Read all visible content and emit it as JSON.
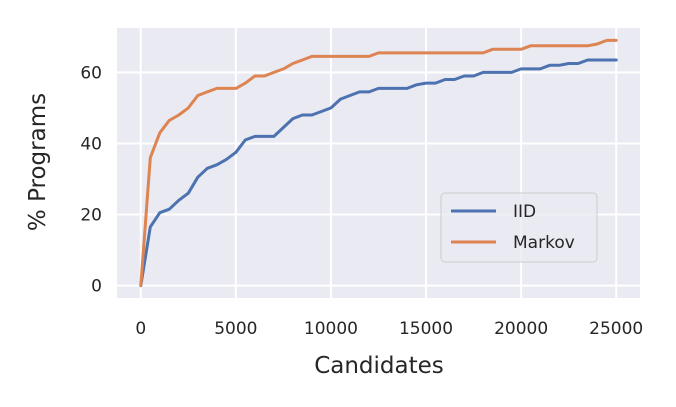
{
  "chart_data": {
    "type": "line",
    "title": "",
    "xlabel": "Candidates",
    "ylabel": "% Programs",
    "xlim": [
      -1250,
      26250
    ],
    "ylim": [
      -3.5,
      72.5
    ],
    "xticks": [
      0,
      5000,
      10000,
      15000,
      20000,
      25000
    ],
    "xtick_labels": [
      "0",
      "5000",
      "10000",
      "15000",
      "20000",
      "25000"
    ],
    "yticks": [
      0,
      20,
      40,
      60
    ],
    "ytick_labels": [
      "0",
      "20",
      "40",
      "60"
    ],
    "grid": true,
    "legend_position": "lower-right",
    "series": [
      {
        "name": "IID",
        "color": "#4c72b0",
        "x": [
          0,
          500,
          1000,
          1500,
          2000,
          2500,
          3000,
          3500,
          4000,
          4500,
          5000,
          5500,
          6000,
          6500,
          7000,
          7500,
          8000,
          8500,
          9000,
          9500,
          10000,
          10500,
          11000,
          11500,
          12000,
          12500,
          13000,
          13500,
          14000,
          14500,
          15000,
          15500,
          16000,
          16500,
          17000,
          17500,
          18000,
          18500,
          19000,
          19500,
          20000,
          20500,
          21000,
          21500,
          22000,
          22500,
          23000,
          23500,
          24000,
          24500,
          25000
        ],
        "y": [
          0,
          16.5,
          20.5,
          21.5,
          24,
          26,
          30.5,
          33,
          34,
          35.5,
          37.5,
          41,
          42,
          42,
          42,
          44.5,
          47,
          48,
          48,
          49,
          50,
          52.5,
          53.5,
          54.5,
          54.5,
          55.5,
          55.5,
          55.5,
          55.5,
          56.5,
          57,
          57,
          58,
          58,
          59,
          59,
          60,
          60,
          60,
          60,
          61,
          61,
          61,
          62,
          62,
          62.5,
          62.5,
          63.5,
          63.5,
          63.5,
          63.5
        ]
      },
      {
        "name": "Markov",
        "color": "#dd8452",
        "x": [
          0,
          500,
          1000,
          1500,
          2000,
          2500,
          3000,
          3500,
          4000,
          4500,
          5000,
          5500,
          6000,
          6500,
          7000,
          7500,
          8000,
          8500,
          9000,
          9500,
          10000,
          10500,
          11000,
          11500,
          12000,
          12500,
          13000,
          13500,
          14000,
          14500,
          15000,
          15500,
          16000,
          16500,
          17000,
          17500,
          18000,
          18500,
          19000,
          19500,
          20000,
          20500,
          21000,
          21500,
          22000,
          22500,
          23000,
          23500,
          24000,
          24500,
          25000
        ],
        "y": [
          0,
          36,
          43,
          46.5,
          48,
          50,
          53.5,
          54.5,
          55.5,
          55.5,
          55.5,
          57,
          59,
          59,
          60,
          61,
          62.5,
          63.5,
          64.5,
          64.5,
          64.5,
          64.5,
          64.5,
          64.5,
          64.5,
          65.5,
          65.5,
          65.5,
          65.5,
          65.5,
          65.5,
          65.5,
          65.5,
          65.5,
          65.5,
          65.5,
          65.5,
          66.5,
          66.5,
          66.5,
          66.5,
          67.5,
          67.5,
          67.5,
          67.5,
          67.5,
          67.5,
          67.5,
          68,
          69,
          69
        ]
      }
    ]
  }
}
